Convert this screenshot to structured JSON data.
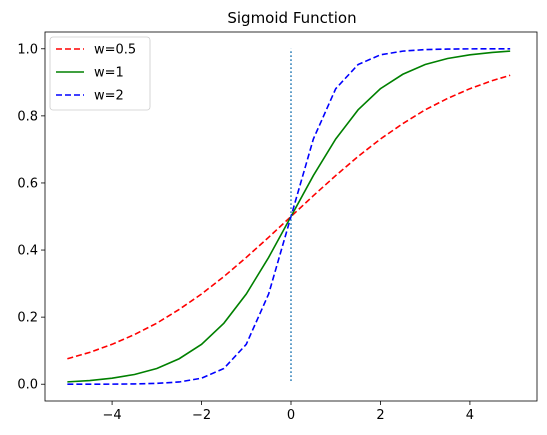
{
  "chart_data": {
    "type": "line",
    "title": "Sigmoid Function",
    "xlabel": "",
    "ylabel": "",
    "xlim": [
      -5.5,
      5.5
    ],
    "ylim": [
      -0.05,
      1.05
    ],
    "x_ticks": [
      -4,
      -2,
      0,
      2,
      4
    ],
    "x_tick_labels": [
      "−4",
      "−2",
      "0",
      "2",
      "4"
    ],
    "y_ticks": [
      0.0,
      0.2,
      0.4,
      0.6,
      0.8,
      1.0
    ],
    "y_tick_labels": [
      "0.0",
      "0.2",
      "0.4",
      "0.6",
      "0.8",
      "1.0"
    ],
    "grid": false,
    "legend_position": "top-left",
    "x": [
      -5.0,
      -4.5,
      -4.0,
      -3.5,
      -3.0,
      -2.5,
      -2.0,
      -1.5,
      -1.0,
      -0.5,
      0.0,
      0.5,
      1.0,
      1.5,
      2.0,
      2.5,
      3.0,
      3.5,
      4.0,
      4.5,
      4.9
    ],
    "series": [
      {
        "name": "w=0.5",
        "color": "#ff0000",
        "style": "dashed",
        "values": [
          0.076,
          0.095,
          0.119,
          0.148,
          0.182,
          0.223,
          0.269,
          0.321,
          0.378,
          0.438,
          0.5,
          0.562,
          0.622,
          0.679,
          0.731,
          0.777,
          0.818,
          0.852,
          0.881,
          0.905,
          0.921
        ]
      },
      {
        "name": "w=1",
        "color": "#008000",
        "style": "solid",
        "values": [
          0.007,
          0.011,
          0.018,
          0.029,
          0.047,
          0.076,
          0.119,
          0.182,
          0.269,
          0.378,
          0.5,
          0.622,
          0.731,
          0.818,
          0.881,
          0.924,
          0.953,
          0.971,
          0.982,
          0.989,
          0.993
        ]
      },
      {
        "name": "w=2",
        "color": "#0000ff",
        "style": "dashed",
        "values": [
          0.0,
          0.0001,
          0.0003,
          0.0009,
          0.0025,
          0.0067,
          0.018,
          0.047,
          0.119,
          0.269,
          0.5,
          0.731,
          0.881,
          0.953,
          0.982,
          0.993,
          0.9975,
          0.9991,
          0.9997,
          0.9999,
          1.0
        ]
      }
    ],
    "reference_line": {
      "x": 0,
      "y_from": 0.01,
      "y_to": 1.0,
      "color": "#1f77b4",
      "style": "dotted"
    }
  }
}
